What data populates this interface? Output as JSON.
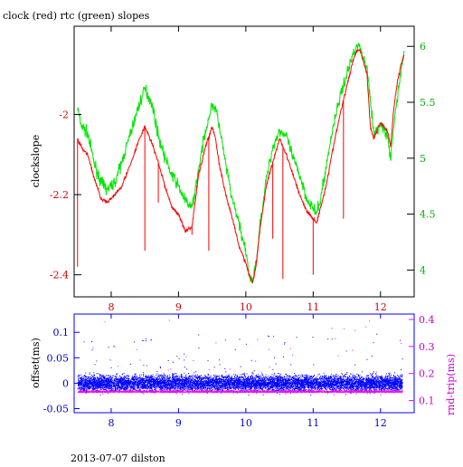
{
  "title": "clock (red) rtc (green) slopes",
  "footer": "2013-07-07 dilston",
  "colors": {
    "red": "#ff0000",
    "green": "#00e600",
    "blue": "#0000ff",
    "magenta": "#ff00ff",
    "frame": "#000000"
  },
  "chart_data": [
    {
      "type": "line",
      "title": "clock (red) rtc (green) slopes",
      "xlabel": "",
      "ylabel": "clockslope",
      "y2label": "",
      "xlim": [
        7.45,
        12.5
      ],
      "ylim": [
        -2.455,
        -1.78
      ],
      "y2lim": [
        3.76,
        6.18
      ],
      "xticks": [
        8,
        9,
        10,
        11,
        12
      ],
      "yticks": [
        -2.4,
        -2.2,
        -2
      ],
      "ytick_labels": [
        "-2.4",
        "-2.2",
        "-2"
      ],
      "y2ticks": [
        4,
        4.5,
        5,
        5.5,
        6
      ],
      "y2tick_labels": [
        "4",
        "4.5",
        "5",
        "5.5",
        "6"
      ],
      "series": [
        {
          "name": "clock",
          "axis": "left",
          "x": [
            7.5,
            7.55,
            7.65,
            7.75,
            7.85,
            7.95,
            8.05,
            8.15,
            8.3,
            8.4,
            8.5,
            8.6,
            8.7,
            8.8,
            8.9,
            9.0,
            9.1,
            9.2,
            9.3,
            9.4,
            9.5,
            9.55,
            9.6,
            9.7,
            9.8,
            9.9,
            10.0,
            10.05,
            10.1,
            10.15,
            10.2,
            10.3,
            10.4,
            10.5,
            10.6,
            10.7,
            10.8,
            10.9,
            11.0,
            11.05,
            11.1,
            11.2,
            11.3,
            11.4,
            11.5,
            11.6,
            11.65,
            11.7,
            11.8,
            11.85,
            11.9,
            12.0,
            12.1,
            12.15,
            12.2,
            12.25,
            12.3,
            12.35
          ],
          "y": [
            -2.06,
            -2.08,
            -2.1,
            -2.16,
            -2.21,
            -2.22,
            -2.2,
            -2.18,
            -2.12,
            -2.07,
            -2.03,
            -2.07,
            -2.12,
            -2.18,
            -2.23,
            -2.25,
            -2.29,
            -2.28,
            -2.15,
            -2.08,
            -2.03,
            -2.06,
            -2.12,
            -2.2,
            -2.26,
            -2.33,
            -2.37,
            -2.4,
            -2.42,
            -2.38,
            -2.3,
            -2.18,
            -2.12,
            -2.06,
            -2.1,
            -2.15,
            -2.2,
            -2.24,
            -2.26,
            -2.27,
            -2.24,
            -2.17,
            -2.08,
            -2.0,
            -1.93,
            -1.86,
            -1.84,
            -1.84,
            -1.9,
            -2.03,
            -2.06,
            -2.02,
            -2.04,
            -2.08,
            -1.98,
            -1.92,
            -1.88,
            -1.85
          ],
          "spikes": [
            {
              "x": 7.5,
              "y": -2.38
            },
            {
              "x": 8.5,
              "y": -2.34
            },
            {
              "x": 8.7,
              "y": -2.22
            },
            {
              "x": 9.2,
              "y": -2.3
            },
            {
              "x": 9.45,
              "y": -2.34
            },
            {
              "x": 10.4,
              "y": -2.31
            },
            {
              "x": 10.55,
              "y": -2.41
            },
            {
              "x": 11.0,
              "y": -2.4
            },
            {
              "x": 11.45,
              "y": -2.26
            }
          ]
        },
        {
          "name": "rtc",
          "axis": "right",
          "x": [
            7.5,
            7.55,
            7.65,
            7.75,
            7.85,
            7.95,
            8.05,
            8.15,
            8.3,
            8.4,
            8.5,
            8.6,
            8.7,
            8.8,
            8.9,
            9.0,
            9.1,
            9.2,
            9.3,
            9.4,
            9.5,
            9.55,
            9.6,
            9.7,
            9.8,
            9.9,
            10.0,
            10.05,
            10.1,
            10.15,
            10.2,
            10.3,
            10.4,
            10.5,
            10.6,
            10.7,
            10.8,
            10.9,
            11.0,
            11.05,
            11.1,
            11.2,
            11.3,
            11.4,
            11.5,
            11.6,
            11.65,
            11.7,
            11.8,
            11.85,
            11.9,
            12.0,
            12.1,
            12.15,
            12.2,
            12.25,
            12.3,
            12.35
          ],
          "y": [
            5.45,
            5.3,
            5.22,
            4.95,
            4.78,
            4.72,
            4.78,
            4.95,
            5.25,
            5.45,
            5.62,
            5.5,
            5.2,
            5.0,
            4.85,
            4.75,
            4.62,
            4.55,
            4.9,
            5.25,
            5.48,
            5.45,
            5.3,
            4.95,
            4.62,
            4.42,
            4.15,
            3.95,
            3.9,
            4.05,
            4.35,
            4.8,
            5.1,
            5.25,
            5.2,
            5.0,
            4.85,
            4.65,
            4.55,
            4.5,
            4.6,
            4.95,
            5.3,
            5.55,
            5.75,
            5.95,
            6.02,
            5.98,
            5.8,
            5.55,
            5.2,
            5.3,
            5.2,
            4.98,
            5.3,
            5.55,
            5.75,
            5.95
          ]
        }
      ]
    },
    {
      "type": "scatter",
      "xlabel": "",
      "ylabel": "offset(ms)",
      "y2label": "rnd-trip(ms)",
      "xlim": [
        7.45,
        12.5
      ],
      "ylim": [
        -0.058,
        0.136
      ],
      "y2lim": [
        0.055,
        0.42
      ],
      "xticks": [
        8,
        9,
        10,
        11,
        12
      ],
      "yticks": [
        -0.05,
        0,
        0.05,
        0.1
      ],
      "ytick_labels": [
        "-0.05",
        "0",
        "0.05",
        "0.1"
      ],
      "y2ticks": [
        0.1,
        0.2,
        0.3,
        0.4
      ],
      "y2tick_labels": [
        "0.1",
        "0.2",
        "0.3",
        "0.4"
      ],
      "series": [
        {
          "name": "offset",
          "axis": "left",
          "x_range": [
            7.5,
            12.32
          ],
          "y_center": 0.0,
          "y_spread": 0.02
        },
        {
          "name": "rnd-trip",
          "axis": "right",
          "x_range": [
            7.5,
            12.32
          ],
          "y_center": 0.13,
          "y_spread": 0.012
        }
      ]
    }
  ]
}
